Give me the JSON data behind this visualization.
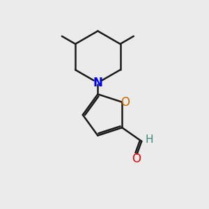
{
  "bg_color": "#ebebeb",
  "bond_color": "#1a1a1a",
  "N_color": "#0000ee",
  "O_color": "#ee0000",
  "O_furan_color": "#cc6600",
  "H_color": "#3a8a7a",
  "bond_width": 1.8,
  "figsize": [
    3.0,
    3.0
  ],
  "dpi": 100,
  "xlim": [
    0,
    10
  ],
  "ylim": [
    0,
    10
  ]
}
